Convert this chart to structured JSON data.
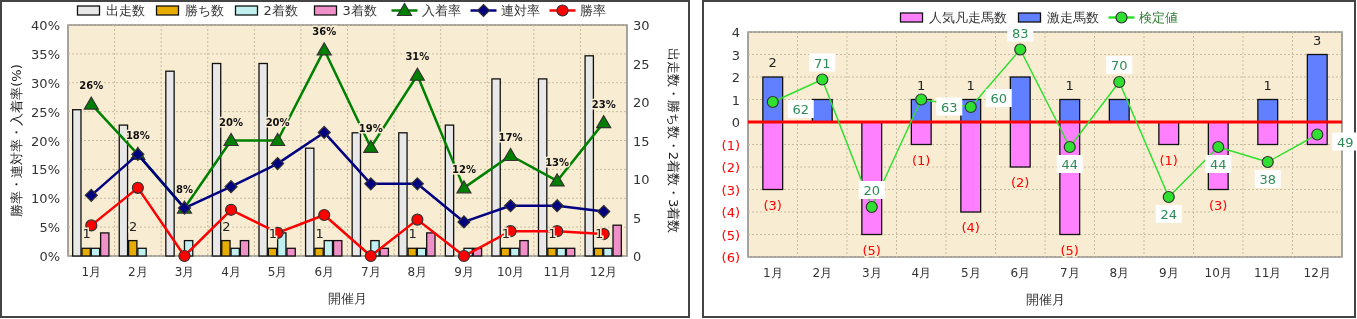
{
  "chart_data": [
    {
      "type": "bar",
      "xlabel": "開催月",
      "ylabel": "勝率・連対率・入着率(%)",
      "y2label": "出走数・勝ち数・2着数・3着数",
      "categories": [
        "1月",
        "2月",
        "3月",
        "4月",
        "5月",
        "6月",
        "7月",
        "8月",
        "9月",
        "10月",
        "11月",
        "12月"
      ],
      "ylim": [
        0,
        40
      ],
      "yticks": [
        {
          "value": 0,
          "label": "0%"
        },
        {
          "value": 5,
          "label": "5%"
        },
        {
          "value": 10,
          "label": "10%"
        },
        {
          "value": 15,
          "label": "15%"
        },
        {
          "value": 20,
          "label": "20%"
        },
        {
          "value": 25,
          "label": "25%"
        },
        {
          "value": 30,
          "label": "30%"
        },
        {
          "value": 35,
          "label": "35%"
        },
        {
          "value": 40,
          "label": "40%"
        }
      ],
      "y2lim": [
        0,
        30
      ],
      "y2ticks": [
        0,
        5,
        10,
        15,
        20,
        25,
        30
      ],
      "grid": true,
      "legend": "top",
      "series": [
        {
          "name": "出走数",
          "axis": "y2",
          "color": "#e8e8e8",
          "values": [
            19,
            17,
            24,
            25,
            25,
            14,
            16,
            16,
            17,
            23,
            23,
            26
          ]
        },
        {
          "name": "勝ち数",
          "axis": "y2",
          "color": "#e6ac00",
          "values": [
            1,
            2,
            0,
            2,
            1,
            1,
            0,
            1,
            0,
            1,
            1,
            1
          ],
          "value_labels": [
            "1",
            "2",
            null,
            "2",
            "1",
            "1",
            null,
            "1",
            null,
            "1",
            "1",
            "1"
          ]
        },
        {
          "name": "2着数",
          "axis": "y2",
          "color": "#c0f0f0",
          "values": [
            1,
            1,
            2,
            1,
            3,
            2,
            2,
            1,
            1,
            1,
            1,
            1
          ]
        },
        {
          "name": "3着数",
          "axis": "y2",
          "color": "#f090c8",
          "values": [
            3,
            0,
            0,
            2,
            1,
            2,
            1,
            3,
            1,
            2,
            1,
            4
          ]
        },
        {
          "name": "入着率",
          "type": "line",
          "color": "#008000",
          "marker": "triangle",
          "values": [
            26.3,
            17.6,
            8.3,
            20,
            20,
            35.7,
            18.8,
            31.3,
            11.8,
            17.4,
            13,
            23.1
          ],
          "value_labels": [
            "26%",
            "18%",
            "8%",
            "20%",
            "20%",
            "36%",
            "19%",
            "31%",
            "12%",
            "17%",
            "13%",
            "23%"
          ]
        },
        {
          "name": "連対率",
          "type": "line",
          "color": "#000080",
          "marker": "diamond",
          "values": [
            10.5,
            17.6,
            8.3,
            12,
            16,
            21.4,
            12.5,
            12.5,
            5.9,
            8.7,
            8.7,
            7.7
          ]
        },
        {
          "name": "勝率",
          "type": "line",
          "color": "#ff0000",
          "marker": "circle",
          "values": [
            5.3,
            11.8,
            0,
            8,
            4,
            7.1,
            0,
            6.3,
            0,
            4.3,
            4.3,
            3.8
          ]
        }
      ]
    },
    {
      "type": "bar",
      "xlabel": "開催月",
      "stacked": true,
      "categories": [
        "1月",
        "2月",
        "3月",
        "4月",
        "5月",
        "6月",
        "7月",
        "8月",
        "9月",
        "10月",
        "11月",
        "12月"
      ],
      "ylim": [
        -6,
        4
      ],
      "yticks": [
        {
          "value": -6,
          "label": "(6)"
        },
        {
          "value": -5,
          "label": "(5)"
        },
        {
          "value": -4,
          "label": "(4)"
        },
        {
          "value": -3,
          "label": "(3)"
        },
        {
          "value": -2,
          "label": "(2)"
        },
        {
          "value": -1,
          "label": "(1)"
        },
        0,
        1,
        2,
        3,
        4
      ],
      "y2lim": [
        0,
        90
      ],
      "grid": true,
      "legend": "top",
      "ref_lines": [
        {
          "axis": "y",
          "value": 0,
          "color": "#ff0000"
        }
      ],
      "series": [
        {
          "name": "人気凡走馬数",
          "color": "#ff80ff",
          "values": [
            -3,
            0,
            -5,
            -1,
            -4,
            -2,
            -5,
            0,
            -1,
            -3,
            -1,
            -1
          ],
          "value_labels": [
            "(3)",
            null,
            "(5)",
            "(1)",
            "(4)",
            "(2)",
            "(5)",
            null,
            "(1)",
            "(3)",
            null,
            null
          ]
        },
        {
          "name": "激走馬数",
          "color": "#6080ff",
          "values": [
            2,
            1,
            0,
            1,
            1,
            2,
            1,
            1,
            0,
            0,
            1,
            3
          ],
          "value_labels": [
            "2",
            null,
            null,
            "1",
            "1",
            null,
            "1",
            null,
            null,
            null,
            "1",
            "3"
          ]
        },
        {
          "name": "検定値",
          "type": "line",
          "axis": "y2",
          "color": "#30e030",
          "marker": "circle",
          "values": [
            62,
            71,
            20,
            63,
            60,
            83,
            44,
            70,
            24,
            44,
            38,
            49
          ],
          "value_labels": [
            "62",
            "71",
            "20",
            "63",
            "60",
            "83",
            "44",
            "70",
            "24",
            "44",
            "38",
            "49"
          ]
        }
      ]
    }
  ]
}
